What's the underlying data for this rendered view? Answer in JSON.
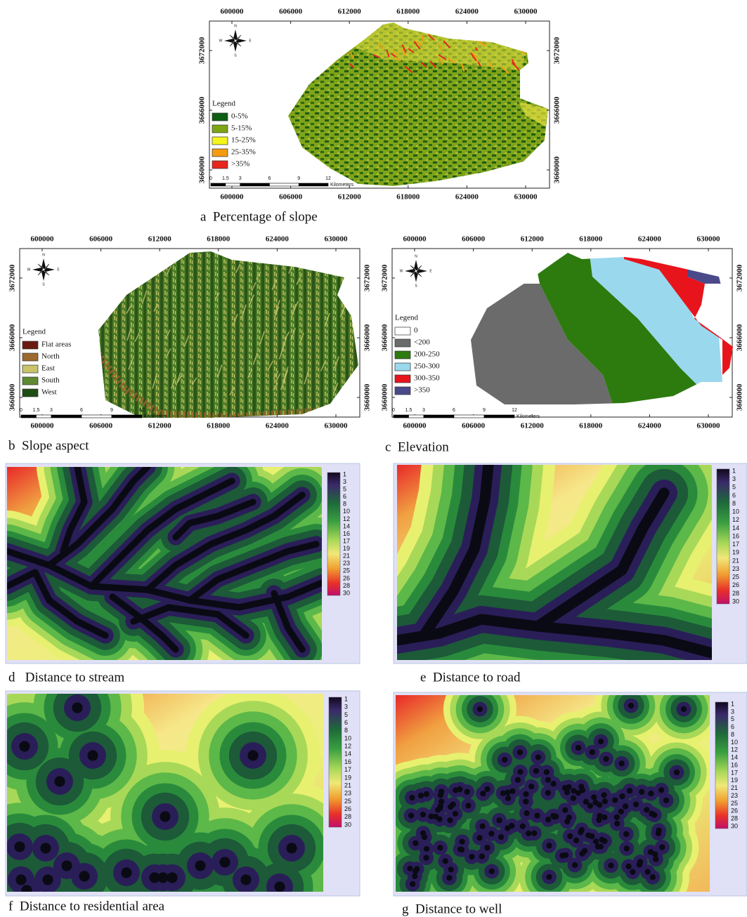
{
  "maps": {
    "xticks": [
      600000,
      606000,
      612000,
      618000,
      624000,
      630000
    ],
    "yticks": [
      3660000,
      3666000,
      3672000
    ],
    "scale": {
      "ticks": [
        0,
        1.5,
        3,
        6,
        9,
        12
      ],
      "unit": "Kilometers"
    },
    "compass": [
      "N",
      "E",
      "S",
      "W"
    ],
    "legend_title": "Legend",
    "panels": [
      {
        "caption": "a  Percentage of slope",
        "legend": [
          {
            "label": "0-5%",
            "color": "#0b5e12"
          },
          {
            "label": "5-15%",
            "color": "#7ea614"
          },
          {
            "label": "15-25%",
            "color": "#f5f51e"
          },
          {
            "label": "25-35%",
            "color": "#f39c12"
          },
          {
            "label": ">35%",
            "color": "#e8261c"
          }
        ]
      },
      {
        "caption": "b  Slope aspect",
        "legend": [
          {
            "label": "Flat areas",
            "color": "#6b1a12"
          },
          {
            "label": "North",
            "color": "#9c6a2e"
          },
          {
            "label": "East",
            "color": "#c9c46a"
          },
          {
            "label": "South",
            "color": "#5f8a32"
          },
          {
            "label": "West",
            "color": "#1e4d14"
          }
        ]
      },
      {
        "caption": "c  Elevation",
        "legend": [
          {
            "label": "0",
            "color": "#ffffff"
          },
          {
            "label": "<200",
            "color": "#6b6b6b"
          },
          {
            "label": "200-250",
            "color": "#2d7a0f"
          },
          {
            "label": "250-300",
            "color": "#9ad8ee"
          },
          {
            "label": "300-350",
            "color": "#e8141c"
          },
          {
            "label": ">350",
            "color": "#4a4a8a"
          }
        ]
      }
    ]
  },
  "rasters": {
    "colorbar_ticks": [
      1,
      3,
      5,
      6,
      8,
      10,
      12,
      14,
      16,
      17,
      19,
      21,
      23,
      25,
      26,
      28,
      30
    ],
    "panels": [
      {
        "caption": "d   Distance to stream"
      },
      {
        "caption": "e  Distance to road"
      },
      {
        "caption": "f  Distance to residential area"
      },
      {
        "caption": "g  Distance to well"
      }
    ]
  }
}
